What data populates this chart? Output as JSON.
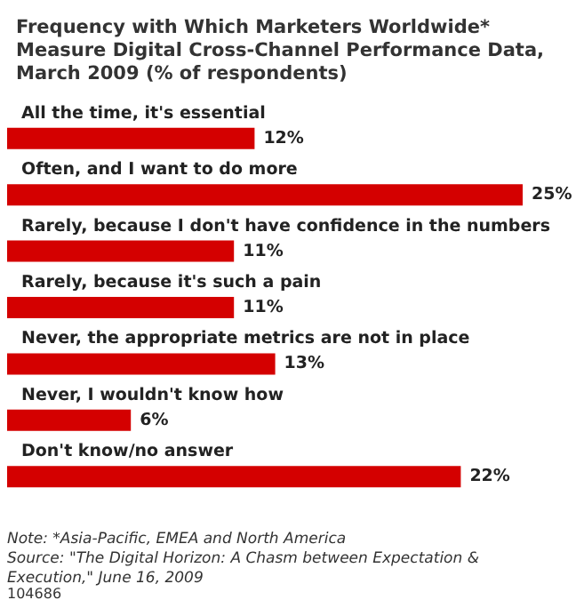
{
  "chart_data": {
    "type": "bar",
    "orientation": "horizontal",
    "title": "Frequency with Which Marketers Worldwide* Measure Digital Cross-Channel Performance Data, March 2009 (% of respondents)",
    "categories": [
      "All the time, it's essential",
      "Often, and I want to do more",
      "Rarely, because I don't have confidence in the numbers",
      "Rarely, because it's such a pain",
      "Never, the appropriate metrics are not in place",
      "Never, I wouldn't know how",
      "Don't know/no answer"
    ],
    "values": [
      12,
      25,
      11,
      11,
      13,
      6,
      22
    ],
    "color": "#d40000",
    "value_labels": [
      "12%",
      "25%",
      "11%",
      "11%",
      "13%",
      "6%",
      "22%"
    ],
    "annotations": [
      "Note: *Asia-Pacific, EMEA and North America",
      "Source: \"The Digital Horizon: A Chasm between Expectation & Execution,\" June 16, 2009",
      "104686"
    ]
  }
}
